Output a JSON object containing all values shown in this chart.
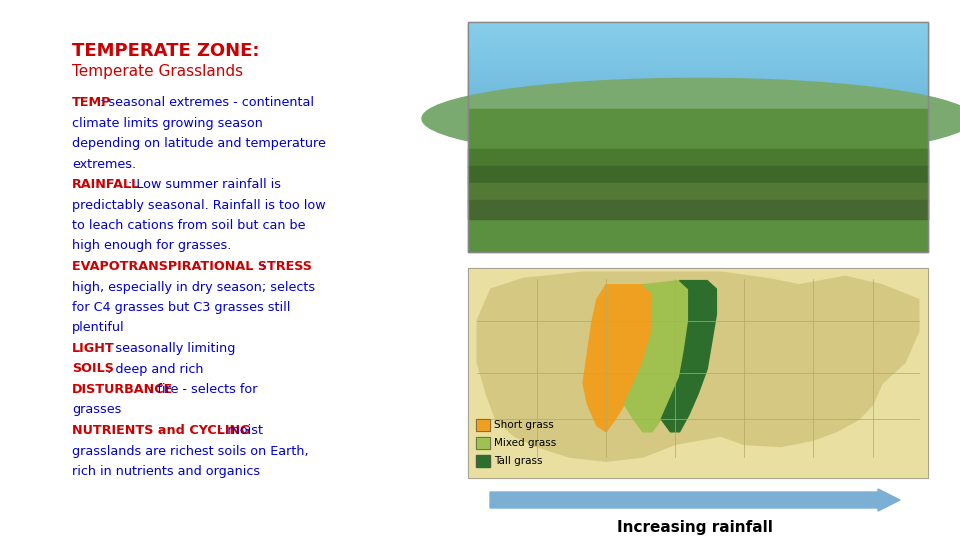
{
  "title_bold": "TEMPERATE ZONE:",
  "title_sub": "Temperate Grasslands",
  "title_color": "#cc0000",
  "sub_color": "#cc0000",
  "background_color": "#ffffff",
  "text_lines": [
    [
      {
        "text": "TEMP",
        "bold": true,
        "color": "#cc0000"
      },
      {
        "text": ": seasonal extremes - continental",
        "bold": false,
        "color": "#0000cc"
      }
    ],
    [
      {
        "text": "climate limits growing season",
        "bold": false,
        "color": "#0000cc"
      }
    ],
    [
      {
        "text": "depending on latitude and temperature",
        "bold": false,
        "color": "#0000cc"
      }
    ],
    [
      {
        "text": "extremes.",
        "bold": false,
        "color": "#0000cc"
      }
    ],
    [
      {
        "text": "RAINFALL",
        "bold": true,
        "color": "#cc0000"
      },
      {
        "text": ": Low summer rainfall is",
        "bold": false,
        "color": "#0000cc"
      }
    ],
    [
      {
        "text": "predictably seasonal. Rainfall is too low",
        "bold": false,
        "color": "#0000cc"
      }
    ],
    [
      {
        "text": "to leach cations from soil but can be",
        "bold": false,
        "color": "#0000cc"
      }
    ],
    [
      {
        "text": "high enough for grasses.",
        "bold": false,
        "color": "#0000cc"
      }
    ],
    [
      {
        "text": "EVAPOTRANSPIRATIONAL STRESS",
        "bold": true,
        "color": "#cc0000"
      },
      {
        "text": ": ",
        "bold": false,
        "color": "#0000cc"
      }
    ],
    [
      {
        "text": "high, especially in dry season; selects",
        "bold": false,
        "color": "#0000cc"
      }
    ],
    [
      {
        "text": "for C4 grasses but C3 grasses still",
        "bold": false,
        "color": "#0000cc"
      }
    ],
    [
      {
        "text": "plentiful",
        "bold": false,
        "color": "#0000cc"
      }
    ],
    [
      {
        "text": "LIGHT",
        "bold": true,
        "color": "#cc0000"
      },
      {
        "text": ": seasonally limiting",
        "bold": false,
        "color": "#0000cc"
      }
    ],
    [
      {
        "text": "SOILS",
        "bold": true,
        "color": "#cc0000"
      },
      {
        "text": ": deep and rich",
        "bold": false,
        "color": "#0000cc"
      }
    ],
    [
      {
        "text": "DISTURBANCE",
        "bold": true,
        "color": "#cc0000"
      },
      {
        "text": ": fire - selects for",
        "bold": false,
        "color": "#0000cc"
      }
    ],
    [
      {
        "text": "grasses",
        "bold": false,
        "color": "#0000cc"
      }
    ],
    [
      {
        "text": "NUTRIENTS and CYCLING",
        "bold": true,
        "color": "#cc0000"
      },
      {
        "text": ": moist",
        "bold": false,
        "color": "#0000cc"
      }
    ],
    [
      {
        "text": "grasslands are richest soils on Earth,",
        "bold": false,
        "color": "#0000cc"
      }
    ],
    [
      {
        "text": "rich in nutrients and organics",
        "bold": false,
        "color": "#0000cc"
      }
    ]
  ],
  "arrow_color": "#7bafd4",
  "arrow_label": "Increasing rainfall",
  "arrow_label_color": "#000000",
  "legend_items": [
    {
      "label": "Short grass",
      "color": "#f0a020"
    },
    {
      "label": "Mixed grass",
      "color": "#a0c050"
    },
    {
      "label": "Tall grass",
      "color": "#2d6e2d"
    }
  ]
}
